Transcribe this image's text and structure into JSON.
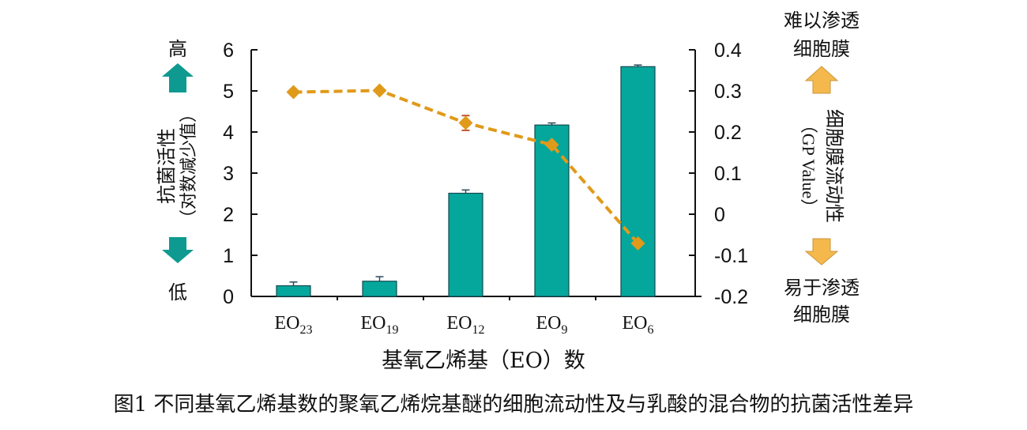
{
  "chart_data": {
    "type": "bar+line",
    "caption": "图1  不同基氧乙烯基数的聚氧乙烯烷基醚的细胞流动性及与乳酸的混合物的抗菌活性差异",
    "xlabel": "基氧乙烯基（EO）数",
    "categories": [
      {
        "base": "EO",
        "sub": "23"
      },
      {
        "base": "EO",
        "sub": "19"
      },
      {
        "base": "EO",
        "sub": "12"
      },
      {
        "base": "EO",
        "sub": "9"
      },
      {
        "base": "EO",
        "sub": "6"
      }
    ],
    "left_axis": {
      "label_line1": "抗菌活性",
      "label_line2": "（对数减少值）",
      "high": "高",
      "low": "低",
      "ylim": [
        0,
        6
      ],
      "ticks": [
        "0",
        "1",
        "2",
        "3",
        "4",
        "5",
        "6"
      ]
    },
    "right_axis": {
      "label_line1": "细胞膜流动性",
      "label_line2": "（GP Value）",
      "top_note_line1": "难以渗透",
      "top_note_line2": "细胞膜",
      "bottom_note_line1": "易于渗透",
      "bottom_note_line2": "细胞膜",
      "ylim": [
        -0.2,
        0.4
      ],
      "ticks": [
        "-0.2",
        "-0.1",
        "0",
        "0.1",
        "0.2",
        "0.3",
        "0.4"
      ]
    },
    "series": [
      {
        "type": "bar",
        "axis": "left",
        "values": [
          0.26,
          0.37,
          2.51,
          4.17,
          5.59
        ],
        "errors": [
          0.09,
          0.11,
          0.08,
          0.05,
          0.04
        ],
        "color": "#05a79c"
      },
      {
        "type": "line",
        "axis": "right",
        "style": "dashed",
        "marker": "diamond",
        "values": [
          0.297,
          0.301,
          0.222,
          0.169,
          -0.071
        ],
        "errors": [
          0,
          0,
          0.018,
          0,
          0
        ],
        "color": "#e09a1a"
      }
    ],
    "arrow_colors": {
      "left": "#0e9a90",
      "right": "#f5b84c"
    },
    "grid": false
  }
}
